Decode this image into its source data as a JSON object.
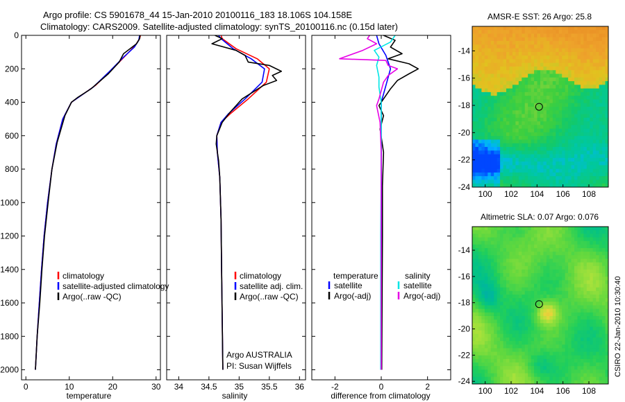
{
  "header": {
    "line1": "Argo profile: CS 5901678_44 15-Jan-2010 20100116_183 18.106S 104.158E",
    "line2": "Climatology: CARS2009. Satellite-adjusted climatology: synTS_20100116.nc (0.15d later)"
  },
  "credit": "CSIRO 22-Jan-2010 10:30:40",
  "colors": {
    "climatology": "#ff0000",
    "satellite": "#0000ff",
    "argo": "#000000",
    "salinity_sat": "#00e5e5",
    "salinity_argo": "#e600e6"
  },
  "chart_data": [
    {
      "type": "line",
      "name": "temperature-profile",
      "xlabel": "temperature",
      "ylabel": "",
      "xlim": [
        -1,
        31
      ],
      "ylim": [
        2060,
        0
      ],
      "xticks": [
        0,
        10,
        20,
        30
      ],
      "yticks": [
        0,
        200,
        400,
        600,
        800,
        1000,
        1200,
        1400,
        1600,
        1800,
        2000
      ],
      "legend": [
        "climatology",
        "satellite-adjusted climatology",
        "Argo(..raw -QC)"
      ],
      "series": [
        {
          "name": "climatology",
          "color": "#ff0000",
          "points": [
            [
              26.4,
              0
            ],
            [
              26.2,
              20
            ],
            [
              25.2,
              60
            ],
            [
              23,
              120
            ],
            [
              20,
              200
            ],
            [
              16,
              300
            ],
            [
              10.5,
              400
            ],
            [
              8.5,
              500
            ],
            [
              7,
              650
            ],
            [
              6,
              800
            ],
            [
              5,
              1000
            ],
            [
              4.2,
              1200
            ],
            [
              3.6,
              1400
            ],
            [
              3.1,
              1600
            ],
            [
              2.6,
              1800
            ],
            [
              2.2,
              2000
            ]
          ]
        },
        {
          "name": "satellite-adjusted climatology",
          "color": "#0000ff",
          "points": [
            [
              26.2,
              0
            ],
            [
              26,
              30
            ],
            [
              25,
              70
            ],
            [
              22.5,
              130
            ],
            [
              19.5,
              210
            ],
            [
              15.5,
              310
            ],
            [
              10.5,
              400
            ],
            [
              8.5,
              500
            ],
            [
              7,
              650
            ],
            [
              6,
              800
            ],
            [
              5,
              1000
            ],
            [
              4.2,
              1200
            ],
            [
              3.6,
              1400
            ],
            [
              3.1,
              1600
            ],
            [
              2.6,
              1800
            ],
            [
              2.2,
              2000
            ]
          ]
        },
        {
          "name": "Argo(..raw -QC)",
          "color": "#000000",
          "points": [
            [
              26.3,
              0
            ],
            [
              26.2,
              20
            ],
            [
              25.5,
              50
            ],
            [
              22.5,
              110
            ],
            [
              21.5,
              160
            ],
            [
              19,
              230
            ],
            [
              15,
              320
            ],
            [
              12,
              370
            ],
            [
              10.5,
              400
            ],
            [
              9,
              480
            ],
            [
              7.2,
              640
            ],
            [
              6,
              800
            ],
            [
              5.2,
              980
            ],
            [
              4.3,
              1200
            ],
            [
              3.7,
              1400
            ],
            [
              3.2,
              1600
            ],
            [
              2.6,
              1800
            ],
            [
              2.2,
              2000
            ]
          ]
        }
      ]
    },
    {
      "type": "line",
      "name": "salinity-profile",
      "xlabel": "salinity",
      "ylabel": "",
      "xlim": [
        33.8,
        36.1
      ],
      "ylim": [
        2060,
        0
      ],
      "xticks": [
        34,
        34.5,
        35,
        35.5,
        36
      ],
      "yticks": [
        0,
        200,
        400,
        600,
        800,
        1000,
        1200,
        1400,
        1600,
        1800,
        2000
      ],
      "legend": [
        "climatology",
        "satellite adj. clim.",
        "Argo(..raw -QC)"
      ],
      "annotations": [
        "Argo AUSTRALIA",
        "PI: Susan Wijffels"
      ],
      "series": [
        {
          "name": "climatology",
          "color": "#ff0000",
          "points": [
            [
              34.7,
              0
            ],
            [
              34.72,
              20
            ],
            [
              34.95,
              80
            ],
            [
              35.3,
              140
            ],
            [
              35.5,
              200
            ],
            [
              35.45,
              280
            ],
            [
              35.15,
              380
            ],
            [
              34.85,
              470
            ],
            [
              34.7,
              520
            ],
            [
              34.63,
              600
            ],
            [
              34.64,
              700
            ],
            [
              34.68,
              850
            ],
            [
              34.7,
              1100
            ],
            [
              34.71,
              1400
            ],
            [
              34.72,
              1700
            ],
            [
              34.73,
              2000
            ]
          ]
        },
        {
          "name": "satellite adj. clim.",
          "color": "#0000ff",
          "points": [
            [
              34.66,
              0
            ],
            [
              34.7,
              20
            ],
            [
              34.9,
              80
            ],
            [
              35.2,
              140
            ],
            [
              35.42,
              200
            ],
            [
              35.38,
              280
            ],
            [
              35.1,
              380
            ],
            [
              34.82,
              470
            ],
            [
              34.7,
              520
            ],
            [
              34.63,
              600
            ],
            [
              34.64,
              700
            ],
            [
              34.68,
              850
            ],
            [
              34.7,
              1100
            ],
            [
              34.71,
              1400
            ],
            [
              34.72,
              1700
            ],
            [
              34.73,
              2000
            ]
          ]
        },
        {
          "name": "Argo(..raw -QC)",
          "color": "#000000",
          "points": [
            [
              34.6,
              0
            ],
            [
              34.72,
              20
            ],
            [
              34.55,
              50
            ],
            [
              34.95,
              90
            ],
            [
              35.1,
              120
            ],
            [
              35.15,
              160
            ],
            [
              35.5,
              180
            ],
            [
              35.7,
              215
            ],
            [
              35.55,
              240
            ],
            [
              35.62,
              270
            ],
            [
              35.4,
              300
            ],
            [
              35.05,
              380
            ],
            [
              34.85,
              460
            ],
            [
              34.72,
              520
            ],
            [
              34.63,
              600
            ],
            [
              34.62,
              650
            ],
            [
              34.66,
              750
            ],
            [
              34.68,
              850
            ],
            [
              34.7,
              1100
            ],
            [
              34.71,
              1400
            ],
            [
              34.72,
              1700
            ],
            [
              34.73,
              2000
            ]
          ]
        }
      ]
    },
    {
      "type": "line",
      "name": "difference-profile",
      "xlabel": "difference from climatology",
      "ylabel": "",
      "xlim": [
        -3,
        3
      ],
      "ylim": [
        2060,
        0
      ],
      "xticks": [
        -2,
        0,
        2
      ],
      "yticks": [
        0,
        200,
        400,
        600,
        800,
        1000,
        1200,
        1400,
        1600,
        1800,
        2000
      ],
      "legend": [
        "temperature",
        "satellite",
        "Argo(-adj)",
        "salinity",
        "satellite",
        "Argo(-adj)"
      ],
      "series": [
        {
          "name": "temperature satellite",
          "color": "#0000ff",
          "points": [
            [
              -0.2,
              0
            ],
            [
              -0.1,
              50
            ],
            [
              0.2,
              120
            ],
            [
              0.4,
              200
            ],
            [
              0.2,
              300
            ],
            [
              0,
              400
            ],
            [
              0,
              600
            ],
            [
              0,
              800
            ],
            [
              0.02,
              1200
            ],
            [
              0.02,
              2000
            ]
          ]
        },
        {
          "name": "temperature Argo(-adj)",
          "color": "#000000",
          "points": [
            [
              0.1,
              0
            ],
            [
              0.6,
              30
            ],
            [
              0.4,
              70
            ],
            [
              0.9,
              110
            ],
            [
              0.3,
              140
            ],
            [
              1.2,
              170
            ],
            [
              1.6,
              200
            ],
            [
              1.2,
              230
            ],
            [
              0.7,
              270
            ],
            [
              0.4,
              320
            ],
            [
              0.1,
              380
            ],
            [
              -0.1,
              420
            ],
            [
              0.1,
              480
            ],
            [
              -0.05,
              560
            ],
            [
              0.1,
              700
            ],
            [
              0.05,
              900
            ],
            [
              0.05,
              1200
            ],
            [
              0.02,
              2000
            ]
          ]
        },
        {
          "name": "salinity satellite",
          "color": "#00e5e5",
          "points": [
            [
              0.6,
              0
            ],
            [
              0.4,
              40
            ],
            [
              -0.3,
              90
            ],
            [
              -0.1,
              130
            ],
            [
              -0.2,
              180
            ],
            [
              -0.1,
              250
            ],
            [
              -0.1,
              310
            ],
            [
              0,
              400
            ],
            [
              0,
              600
            ],
            [
              0,
              800
            ],
            [
              -0.02,
              1200
            ],
            [
              -0.02,
              2000
            ]
          ]
        },
        {
          "name": "salinity Argo(-adj)",
          "color": "#e600e6",
          "points": [
            [
              -0.5,
              0
            ],
            [
              -0.6,
              20
            ],
            [
              -0.2,
              50
            ],
            [
              -0.8,
              90
            ],
            [
              -1.8,
              140
            ],
            [
              0.2,
              150
            ],
            [
              0.3,
              180
            ],
            [
              0.7,
              200
            ],
            [
              0.3,
              240
            ],
            [
              0.1,
              280
            ],
            [
              -0.1,
              380
            ],
            [
              -0.2,
              420
            ],
            [
              -0.05,
              520
            ],
            [
              0,
              700
            ],
            [
              0,
              1200
            ],
            [
              0,
              2000
            ]
          ]
        }
      ]
    },
    {
      "type": "heatmap",
      "name": "sst-map",
      "title": "AMSR-E SST: 26 Argo: 25.8",
      "xlim": [
        99,
        109.5
      ],
      "ylim": [
        -24,
        -12.2
      ],
      "xticks": [
        100,
        102,
        104,
        106,
        108
      ],
      "yticks": [
        -14,
        -16,
        -18,
        -20,
        -22,
        -24
      ],
      "marker": {
        "lon": 104.158,
        "lat": -18.106
      },
      "palette": [
        "#0047ff",
        "#00b4ff",
        "#00c8a0",
        "#12c96b",
        "#3fcf3e",
        "#8fd43a",
        "#e2c21f",
        "#eea12b",
        "#e98d24"
      ]
    },
    {
      "type": "heatmap",
      "name": "sla-map",
      "title": "Altimetric SLA: 0.07 Argo: 0.076",
      "xlim": [
        99,
        109.5
      ],
      "ylim": [
        -24.2,
        -12.2
      ],
      "xticks": [
        100,
        102,
        104,
        106,
        108
      ],
      "yticks": [
        -14,
        -16,
        -18,
        -20,
        -22,
        -24
      ],
      "marker": {
        "lon": 104.158,
        "lat": -18.106
      },
      "palette": [
        "#00a8b4",
        "#00c08c",
        "#22cf5a",
        "#62d83e",
        "#a6e13b",
        "#e3d83b",
        "#f5b43a"
      ]
    }
  ]
}
